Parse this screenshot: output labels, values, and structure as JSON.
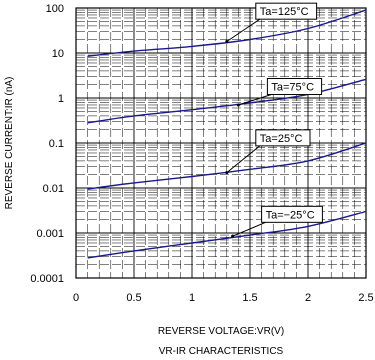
{
  "chart_data": {
    "type": "line",
    "title": "VR-IR CHARACTERISTICS",
    "xlabel": "REVERSE VOLTAGE:VR(V)",
    "ylabel": "REVERSE CURRENT:IR (nA)",
    "xlim": [
      0,
      2.5
    ],
    "ylim": [
      0.0001,
      100
    ],
    "yscale": "log",
    "grid": true,
    "x_ticks": [
      "0",
      "0.5",
      "1",
      "1.5",
      "2",
      "2.5"
    ],
    "y_ticks": [
      "0.0001",
      "0.001",
      "0.01",
      "0.1",
      "1",
      "10",
      "100"
    ],
    "series": [
      {
        "name": "Ta=125°C",
        "color": "#1a1a8c",
        "x": [
          0.1,
          0.5,
          1.0,
          1.5,
          2.0,
          2.5
        ],
        "y": [
          8.5,
          11,
          14,
          20,
          35,
          90
        ]
      },
      {
        "name": "Ta=75°C",
        "color": "#1a1a8c",
        "x": [
          0.1,
          0.5,
          1.0,
          1.5,
          2.0,
          2.5
        ],
        "y": [
          0.28,
          0.4,
          0.55,
          0.78,
          1.2,
          2.6
        ]
      },
      {
        "name": "Ta=25°C",
        "color": "#1a1a8c",
        "x": [
          0.1,
          0.5,
          1.0,
          1.5,
          2.0,
          2.5
        ],
        "y": [
          0.0095,
          0.013,
          0.018,
          0.026,
          0.04,
          0.1
        ]
      },
      {
        "name": "Ta=−25°C",
        "color": "#1a1a8c",
        "x": [
          0.1,
          0.5,
          1.0,
          1.5,
          2.0,
          2.5
        ],
        "y": [
          0.00028,
          0.0004,
          0.0006,
          0.0009,
          0.0014,
          0.003
        ]
      }
    ],
    "annotations": [
      {
        "text": "Ta=125°C",
        "anchor_x": 1.3,
        "anchor_y": 18,
        "box_x": 1.55,
        "box_y": 85
      },
      {
        "text": "Ta=75°C",
        "anchor_x": 1.4,
        "anchor_y": 0.7,
        "box_x": 1.65,
        "box_y": 1.8
      },
      {
        "text": "Ta=25°C",
        "anchor_x": 1.3,
        "anchor_y": 0.022,
        "box_x": 1.55,
        "box_y": 0.13
      },
      {
        "text": "Ta=−25°C",
        "anchor_x": 1.35,
        "anchor_y": 0.00085,
        "box_x": 1.6,
        "box_y": 0.0026
      }
    ]
  }
}
